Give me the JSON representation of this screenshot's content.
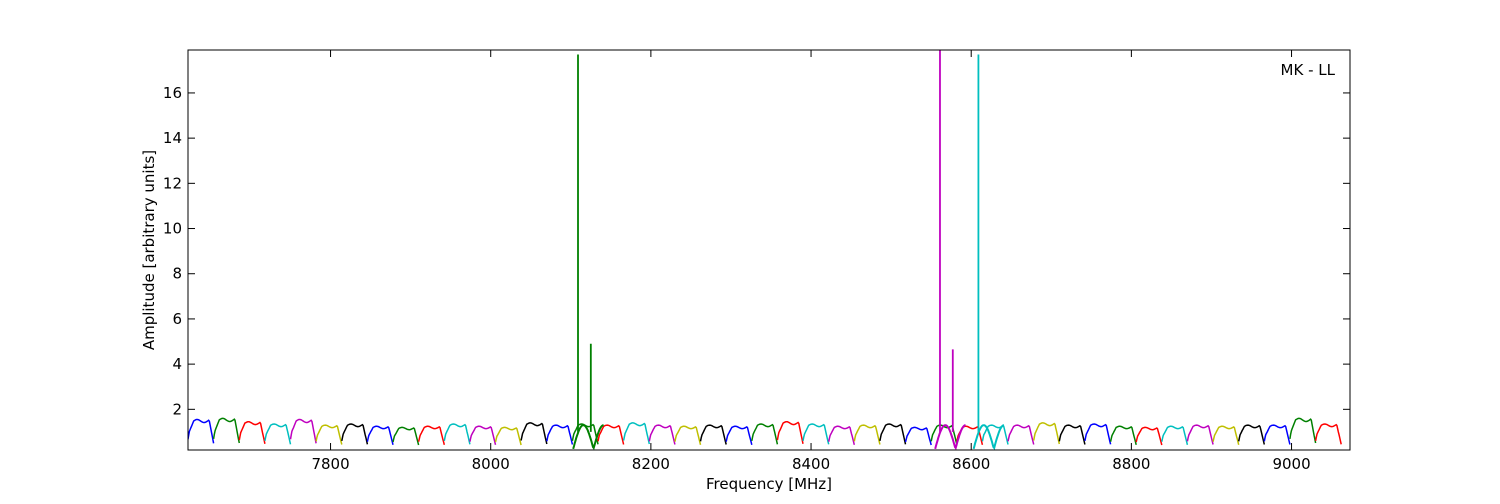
{
  "chart_data": {
    "type": "line",
    "legend_text": "MK - LL",
    "legend_placement": "top-right",
    "xlabel": "Frequency [MHz]",
    "ylabel": "Amplitude [arbitrary units]",
    "xlim": [
      7622,
      9073
    ],
    "ylim": [
      0.2,
      17.9
    ],
    "grid": false,
    "xticks": [
      7800,
      8000,
      8200,
      8400,
      8600,
      8800,
      9000
    ],
    "yticks": [
      2,
      4,
      6,
      8,
      10,
      12,
      14,
      16
    ],
    "colors": [
      "#0000ff",
      "#008000",
      "#ff0000",
      "#00bfbf",
      "#bf00bf",
      "#bfbf00",
      "#000000"
    ],
    "channel_width_mhz": 32,
    "start_freq_mhz": 7622,
    "channel_count": 45,
    "channel_peaks": [
      1.55,
      1.6,
      1.45,
      1.35,
      1.55,
      1.3,
      1.35,
      1.25,
      1.2,
      1.25,
      1.35,
      1.25,
      1.2,
      1.4,
      1.3,
      1.35,
      1.3,
      1.4,
      1.3,
      1.25,
      1.3,
      1.25,
      1.35,
      1.45,
      1.35,
      1.25,
      1.3,
      1.35,
      1.2,
      1.3,
      1.25,
      1.3,
      1.3,
      1.4,
      1.3,
      1.35,
      1.25,
      1.2,
      1.25,
      1.3,
      1.25,
      1.3,
      1.3,
      1.6,
      1.35
    ],
    "spikes": [
      {
        "freq": 8109,
        "value": 17.7,
        "color": "#008000"
      },
      {
        "freq": 8125,
        "value": 4.9,
        "color": "#008000"
      },
      {
        "freq": 8561,
        "value": 17.9,
        "color": "#bf00bf"
      },
      {
        "freq": 8577,
        "value": 4.65,
        "color": "#bf00bf"
      },
      {
        "freq": 8609,
        "value": 17.7,
        "color": "#00bfbf"
      }
    ],
    "overlap_channels": [
      {
        "start": 8103,
        "end": 8141,
        "color": "#008000"
      },
      {
        "start": 8555,
        "end": 8593,
        "color": "#bf00bf"
      },
      {
        "start": 8603,
        "end": 8641,
        "color": "#00bfbf"
      }
    ]
  }
}
